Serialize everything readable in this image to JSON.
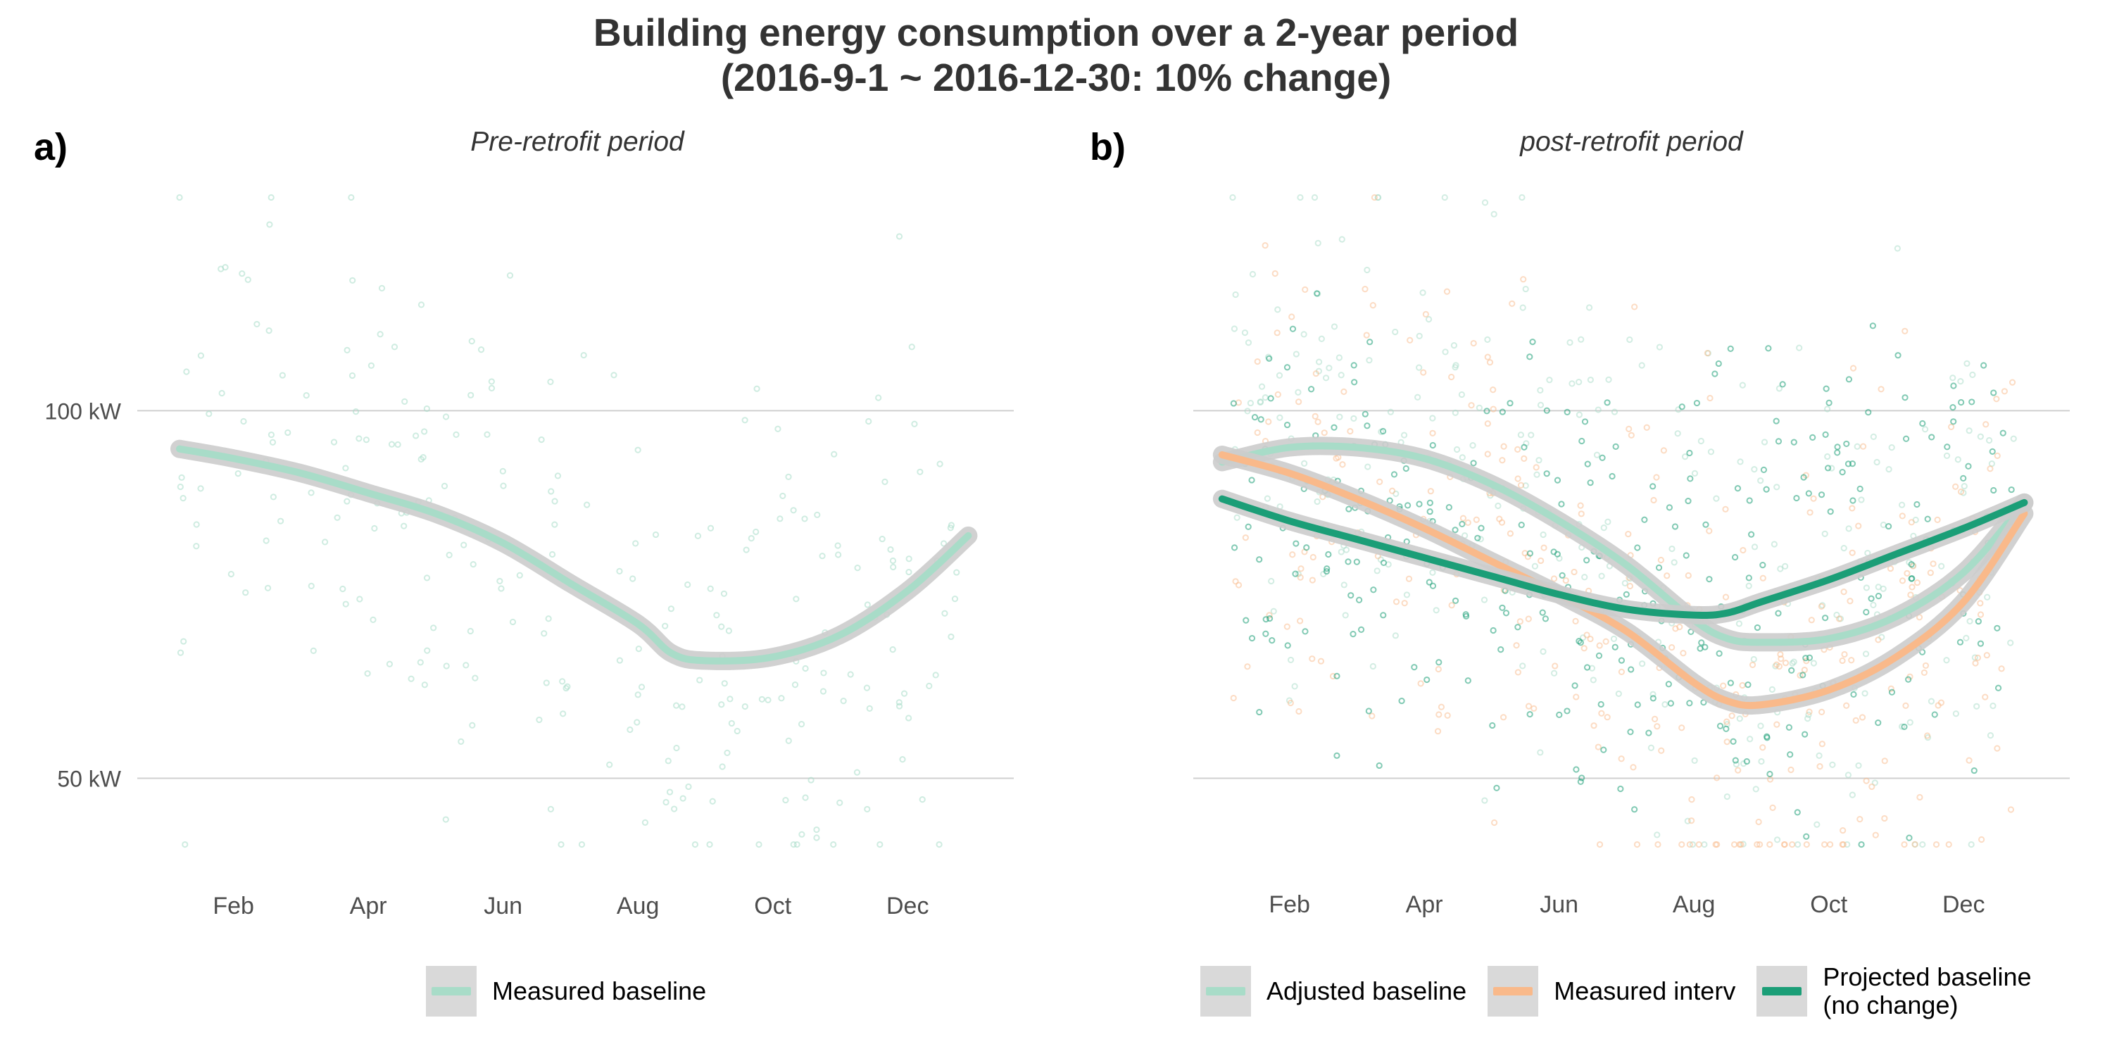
{
  "title_line1": "Building energy consumption over a 2-year period",
  "title_line2": "(2016-9-1 ~ 2016-12-30: 10% change)",
  "colors": {
    "measured_baseline": "#a8dcc8",
    "adjusted_baseline": "#a8dcc8",
    "measured_interv": "#f9b98a",
    "projected_baseline": "#1b9e77",
    "gridline": "#d0d0d0",
    "legend_key_bg": "#d9d9d9"
  },
  "chart_data": [
    {
      "type": "scatter",
      "panel_tag": "a)",
      "subtitle": "Pre-retrofit period",
      "x_ticks": [
        "Feb",
        "Apr",
        "Jun",
        "Aug",
        "Oct",
        "Dec"
      ],
      "x_tick_months": [
        2,
        4,
        6,
        8,
        10,
        12
      ],
      "y_ticks": [
        50,
        100
      ],
      "y_tick_labels": [
        "50 kW",
        "100 kW"
      ],
      "xlim": [
        1.2,
        13.0
      ],
      "ylim": [
        40,
        130
      ],
      "grid": "horizontal major only",
      "legend_position": "bottom",
      "series": [
        {
          "name": "Measured baseline",
          "color_key": "measured_baseline",
          "smooth_month": [
            1.2,
            2,
            3,
            4,
            5,
            6,
            7,
            8,
            8.5,
            9,
            10,
            11,
            12,
            12.9
          ],
          "smooth_value": [
            94.8,
            93.5,
            91.5,
            88.8,
            86,
            82,
            76.5,
            71,
            67,
            66,
            66.5,
            69.5,
            75.5,
            83
          ]
        }
      ]
    },
    {
      "type": "scatter",
      "panel_tag": "b)",
      "subtitle": "post-retrofit period",
      "x_ticks": [
        "Feb",
        "Apr",
        "Jun",
        "Aug",
        "Oct",
        "Dec"
      ],
      "x_tick_months": [
        2,
        4,
        6,
        8,
        10,
        12
      ],
      "y_ticks": [
        50,
        100
      ],
      "y_tick_labels": [
        "50 kW",
        "100 kW"
      ],
      "xlim": [
        1.2,
        13.0
      ],
      "ylim": [
        40,
        130
      ],
      "grid": "horizontal major only",
      "legend_position": "bottom",
      "series": [
        {
          "name": "Adjusted baseline",
          "color_key": "adjusted_baseline",
          "smooth_month": [
            1.0,
            2,
            3,
            4,
            5,
            6,
            7,
            8,
            8.5,
            9,
            10,
            11,
            12,
            12.9
          ],
          "smooth_value": [
            93,
            95,
            95,
            93.5,
            90,
            85,
            79,
            71.5,
            69,
            68.5,
            69,
            72,
            78,
            87.5
          ]
        },
        {
          "name": "Measured interv",
          "color_key": "measured_interv",
          "smooth_month": [
            1.0,
            2,
            3,
            4,
            5,
            6,
            7,
            8,
            8.5,
            9,
            10,
            11,
            12,
            12.9
          ],
          "smooth_value": [
            94,
            91.5,
            88,
            84,
            79.5,
            75,
            70,
            63,
            60.5,
            60,
            62,
            66.5,
            74,
            86
          ]
        },
        {
          "name": "Projected baseline\n(no change)",
          "color_key": "projected_baseline",
          "smooth_month": [
            1.0,
            2,
            3,
            4,
            5,
            6,
            7,
            8,
            8.5,
            9,
            10,
            11,
            12,
            12.9
          ],
          "smooth_value": [
            88,
            85,
            82.5,
            80,
            77.5,
            75,
            73,
            72.2,
            72.5,
            74,
            77,
            80.5,
            84,
            87.5
          ]
        }
      ]
    }
  ]
}
